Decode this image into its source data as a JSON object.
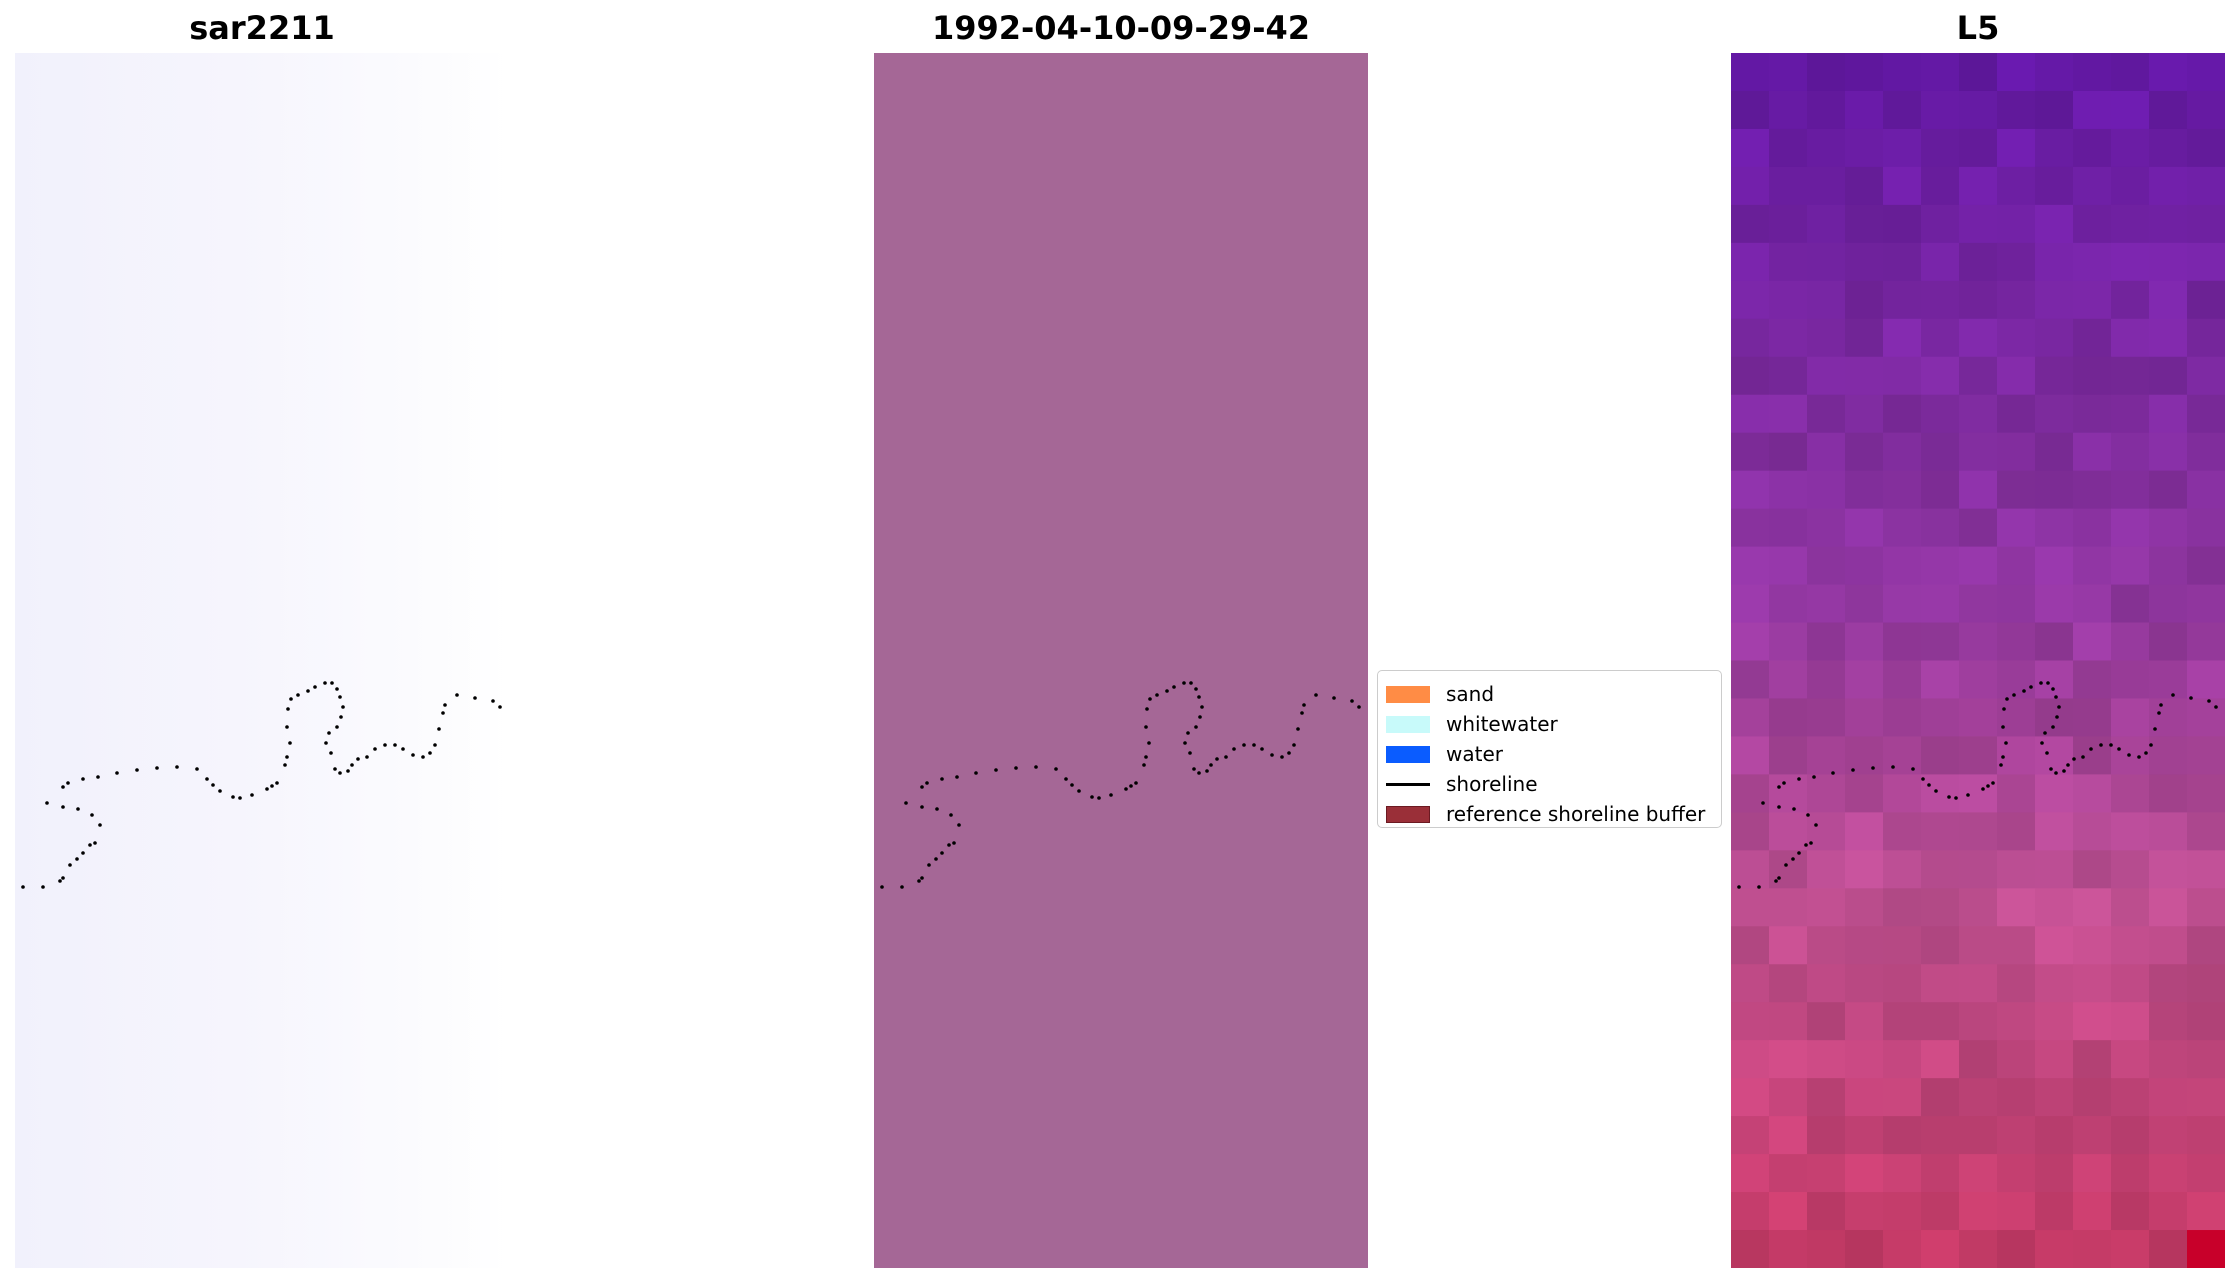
{
  "panels": [
    {
      "title": "sar2211"
    },
    {
      "title": "1992-04-10-09-29-42"
    },
    {
      "title": "L5"
    }
  ],
  "legend": {
    "items": [
      {
        "label": "sand",
        "color": "#ff8c45",
        "kind": "patch"
      },
      {
        "label": "whitewater",
        "color": "#c8fafa",
        "kind": "patch"
      },
      {
        "label": "water",
        "color": "#0a5cff",
        "kind": "patch"
      },
      {
        "label": "shoreline",
        "color": "#000000",
        "kind": "line"
      },
      {
        "label": "reference shoreline buffer",
        "color": "#9a2f38",
        "kind": "patch"
      }
    ]
  },
  "colors": {
    "classified_fill": "#a56796",
    "shoreline_points": "#000000"
  }
}
